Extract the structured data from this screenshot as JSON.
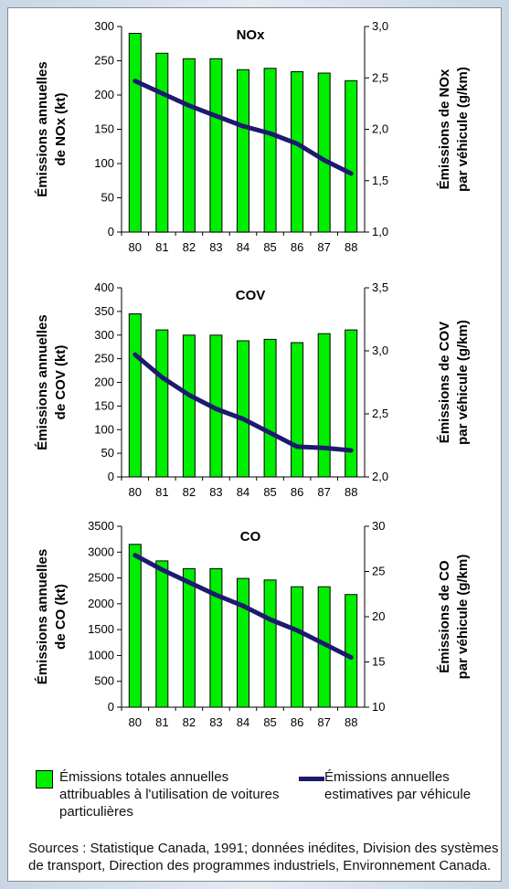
{
  "chart_data": [
    {
      "type": "bar",
      "title": "NOx",
      "categories": [
        "80",
        "81",
        "82",
        "83",
        "84",
        "85",
        "86",
        "87",
        "88"
      ],
      "y_left": {
        "label": [
          "Émissions annuelles",
          "de NOx (kt)"
        ],
        "range": [
          0,
          300
        ],
        "ticks": [
          "0",
          "50",
          "100",
          "150",
          "200",
          "250",
          "300"
        ]
      },
      "y_right": {
        "label": [
          "Émissions de NOx",
          "par véhicule (g/km)"
        ],
        "range": [
          1.0,
          3.0
        ],
        "ticks": [
          "1,0",
          "1,5",
          "2,0",
          "2,5",
          "3,0"
        ]
      },
      "series": [
        {
          "name": "Émissions totales annuelles attribuables à l'utilisation de voitures particulières",
          "type": "bar",
          "axis": "left",
          "values": [
            290,
            261,
            253,
            253,
            237,
            239,
            234,
            232,
            221
          ]
        },
        {
          "name": "Émissions annuelles estimatives par véhicule",
          "type": "line",
          "axis": "right",
          "values": [
            2.47,
            2.35,
            2.23,
            2.13,
            2.03,
            1.96,
            1.86,
            1.7,
            1.57
          ]
        }
      ]
    },
    {
      "type": "bar",
      "title": "COV",
      "categories": [
        "80",
        "81",
        "82",
        "83",
        "84",
        "85",
        "86",
        "87",
        "88"
      ],
      "y_left": {
        "label": [
          "Émissions annuelles",
          "de COV (kt)"
        ],
        "range": [
          0,
          400
        ],
        "ticks": [
          "0",
          "50",
          "100",
          "150",
          "200",
          "250",
          "300",
          "350",
          "400"
        ]
      },
      "y_right": {
        "label": [
          "Émissions de COV",
          "par véhicule (g/km)"
        ],
        "range": [
          2.0,
          3.5
        ],
        "ticks": [
          "2,0",
          "2,5",
          "3,0",
          "3,5"
        ]
      },
      "series": [
        {
          "name": "Émissions totales annuelles attribuables à l'utilisation de voitures particulières",
          "type": "bar",
          "axis": "left",
          "values": [
            345,
            311,
            300,
            300,
            288,
            291,
            284,
            303,
            311
          ]
        },
        {
          "name": "Émissions annuelles estimatives par véhicule",
          "type": "line",
          "axis": "right",
          "values": [
            2.97,
            2.79,
            2.65,
            2.54,
            2.46,
            2.35,
            2.24,
            2.23,
            2.21
          ]
        }
      ]
    },
    {
      "type": "bar",
      "title": "CO",
      "categories": [
        "80",
        "81",
        "82",
        "83",
        "84",
        "85",
        "86",
        "87",
        "88"
      ],
      "y_left": {
        "label": [
          "Émissions annuelles",
          "de CO (kt)"
        ],
        "range": [
          0,
          3500
        ],
        "ticks": [
          "0",
          "500",
          "1000",
          "1500",
          "2000",
          "2500",
          "3000",
          "3500"
        ]
      },
      "y_right": {
        "label": [
          "Émissions de CO",
          "par véhicule (g/km)"
        ],
        "range": [
          10,
          30
        ],
        "ticks": [
          "10",
          "15",
          "20",
          "25",
          "30"
        ]
      },
      "series": [
        {
          "name": "Émissions totales annuelles attribuables à l'utilisation de voitures particulières",
          "type": "bar",
          "axis": "left",
          "values": [
            3150,
            2830,
            2680,
            2680,
            2490,
            2460,
            2330,
            2330,
            2180
          ]
        },
        {
          "name": "Émissions annuelles estimatives par véhicule",
          "type": "line",
          "axis": "right",
          "values": [
            26.8,
            25.2,
            23.8,
            22.4,
            21.2,
            19.7,
            18.5,
            17.0,
            15.5
          ]
        }
      ]
    }
  ],
  "legend": {
    "bars_label": "Émissions totales annuelles attribuables à l'utilisation de voitures particulières",
    "line_label": "Émissions annuelles estimatives par véhicule"
  },
  "sources": "Sources : Statistique Canada, 1991; données inédites, Division des systèmes de transport, Direction des programmes industriels, Environnement Canada.",
  "colors": {
    "bar": "#00ee00",
    "bar_edge": "#000000",
    "line": "#1c1a6e",
    "axis": "#000000"
  }
}
